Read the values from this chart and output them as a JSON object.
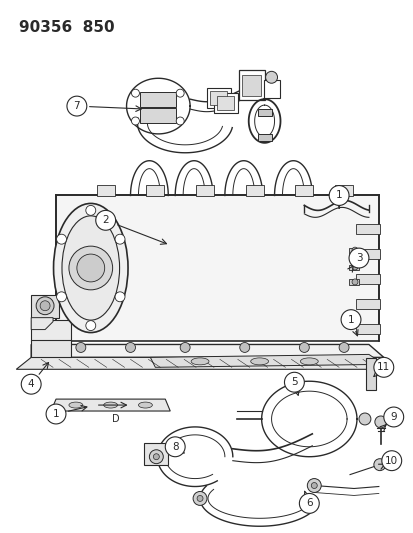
{
  "title_text": "90356  850",
  "bg_color": "#ffffff",
  "line_color": "#2a2a2a",
  "fig_width": 4.14,
  "fig_height": 5.33,
  "dpi": 100
}
